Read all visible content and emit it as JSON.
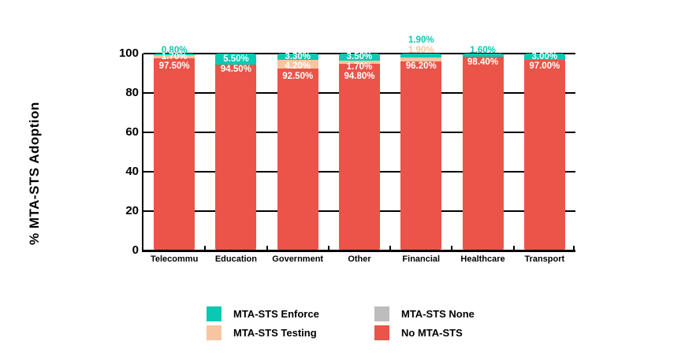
{
  "chart_data": {
    "type": "bar",
    "variant": "stacked-percentage",
    "title": "",
    "xlabel": "",
    "ylabel": "% MTA-STS Adoption",
    "ylim": [
      0,
      100
    ],
    "yticks": [
      0,
      20,
      40,
      60,
      80,
      100
    ],
    "grid": "horizontal",
    "grid_color": "#000000",
    "legend_position": "bottom",
    "legend_columns": 2,
    "background_color": "#ffffff",
    "categories": [
      "Telecommu",
      "Education",
      "Government",
      "Other",
      "Financial",
      "Healthcare",
      "Transport"
    ],
    "series": [
      {
        "name": "MTA-STS Enforce",
        "color": "#08c9b2",
        "values": [
          0.8,
          5.5,
          3.3,
          3.5,
          1.9,
          1.6,
          3.0
        ],
        "label_placements": [
          "above",
          "inside",
          "inside",
          "inside",
          "above",
          "above",
          "inside"
        ]
      },
      {
        "name": "MTA-STS Testing",
        "color": "#f9c5a0",
        "values": [
          1.7,
          0,
          4.2,
          1.7,
          1.9,
          0,
          0
        ],
        "label_placements": [
          "inside",
          null,
          "inside",
          "inside",
          "above",
          null,
          null
        ]
      },
      {
        "name": "MTA-STS None",
        "color": "#bdbdbd",
        "values": [
          0,
          0,
          0,
          0,
          0,
          0,
          0
        ],
        "label_placements": [
          null,
          null,
          null,
          null,
          null,
          null,
          null
        ]
      },
      {
        "name": "No MTA-STS",
        "color": "#eb5448",
        "values": [
          97.5,
          94.5,
          92.5,
          94.8,
          96.2,
          98.4,
          97.0
        ],
        "label_placements": [
          "inside",
          "inside",
          "inside",
          "inside",
          "inside",
          "inside",
          "inside"
        ]
      }
    ],
    "value_label_format": "two-decimal-percent",
    "inside_label_color": "#ffffff"
  }
}
